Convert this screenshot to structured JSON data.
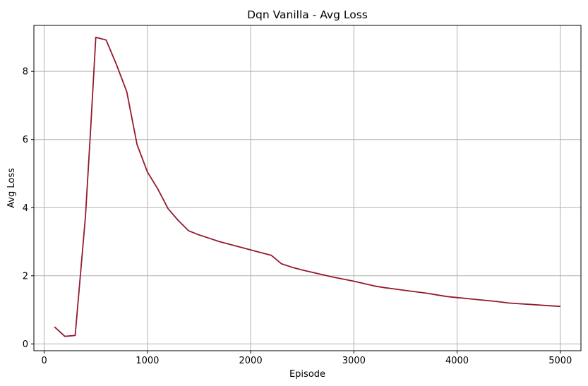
{
  "chart_data": {
    "type": "line",
    "title": "Dqn Vanilla - Avg Loss",
    "xlabel": "Episode",
    "ylabel": "Avg Loss",
    "xlim": [
      -100,
      5200
    ],
    "ylim": [
      -0.2,
      9.35
    ],
    "xticks": [
      0,
      1000,
      2000,
      3000,
      4000,
      5000
    ],
    "xtick_labels": [
      "0",
      "1000",
      "2000",
      "3000",
      "4000",
      "5000"
    ],
    "yticks": [
      0,
      2,
      4,
      6,
      8
    ],
    "ytick_labels": [
      "0",
      "2",
      "4",
      "6",
      "8"
    ],
    "grid": true,
    "series": [
      {
        "color": "#931a2e",
        "x": [
          100,
          200,
          300,
          400,
          450,
          500,
          600,
          700,
          800,
          900,
          1000,
          1100,
          1200,
          1300,
          1400,
          1500,
          1600,
          1700,
          1800,
          1900,
          2000,
          2100,
          2200,
          2300,
          2400,
          2500,
          2600,
          2700,
          2800,
          2900,
          3000,
          3100,
          3200,
          3300,
          3400,
          3500,
          3600,
          3700,
          3800,
          3900,
          4000,
          4100,
          4200,
          4300,
          4400,
          4500,
          4600,
          4700,
          4800,
          4900,
          5000
        ],
        "y": [
          0.5,
          0.22,
          0.25,
          3.75,
          6.3,
          9.0,
          8.92,
          8.2,
          7.4,
          5.85,
          5.05,
          4.55,
          3.97,
          3.62,
          3.32,
          3.2,
          3.1,
          3.0,
          2.92,
          2.84,
          2.76,
          2.68,
          2.6,
          2.35,
          2.25,
          2.17,
          2.1,
          2.03,
          1.96,
          1.9,
          1.84,
          1.77,
          1.7,
          1.65,
          1.61,
          1.57,
          1.53,
          1.49,
          1.44,
          1.39,
          1.36,
          1.33,
          1.3,
          1.27,
          1.24,
          1.2,
          1.18,
          1.16,
          1.14,
          1.12,
          1.1
        ]
      }
    ]
  }
}
